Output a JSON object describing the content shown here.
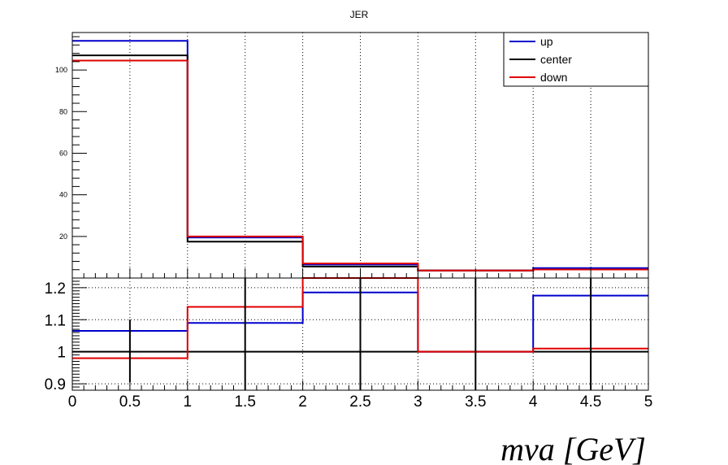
{
  "chart_data": {
    "type": "line",
    "title": "JER",
    "xlabel": "mva [GeV]",
    "x_edges": [
      0,
      1,
      2,
      3,
      4,
      5
    ],
    "x_ticks": [
      "0",
      "0.5",
      "1",
      "1.5",
      "2",
      "2.5",
      "3",
      "3.5",
      "4",
      "4.5",
      "5"
    ],
    "top_panel": {
      "ylim": [
        0,
        118
      ],
      "y_ticks": [
        "20",
        "40",
        "60",
        "80",
        "100"
      ],
      "series": [
        {
          "name": "up",
          "color": "#0000cc",
          "values": [
            114,
            19.5,
            6.5,
            3.6,
            4.8
          ]
        },
        {
          "name": "center",
          "color": "#000000",
          "values": [
            107,
            17.5,
            5.5,
            3.6,
            4.1
          ]
        },
        {
          "name": "down",
          "color": "#e00000",
          "values": [
            104.5,
            20,
            7,
            3.6,
            4.1
          ]
        }
      ],
      "legend_position": "top-right"
    },
    "ratio_panel": {
      "ylim": [
        0.88,
        1.23
      ],
      "y_ticks": [
        "0.9",
        "1",
        "1.1",
        "1.2"
      ],
      "series": [
        {
          "name": "up",
          "color": "#0000cc",
          "values": [
            1.065,
            1.09,
            1.185,
            1.0,
            1.175
          ]
        },
        {
          "name": "center",
          "color": "#000000",
          "values": [
            1.0,
            1.0,
            1.0,
            1.0,
            1.0
          ]
        },
        {
          "name": "down",
          "color": "#e00000",
          "values": [
            0.98,
            1.14,
            1.25,
            1.0,
            1.01
          ]
        }
      ],
      "error_bars": [
        {
          "x": 0.5,
          "low": 0.905,
          "high": 1.1
        },
        {
          "x": 1.5,
          "low": 0.88,
          "high": 1.23
        },
        {
          "x": 2.5,
          "low": 0.88,
          "high": 1.23
        },
        {
          "x": 3.5,
          "low": 0.88,
          "high": 1.23
        },
        {
          "x": 4.5,
          "low": 0.88,
          "high": 1.23
        }
      ]
    }
  }
}
